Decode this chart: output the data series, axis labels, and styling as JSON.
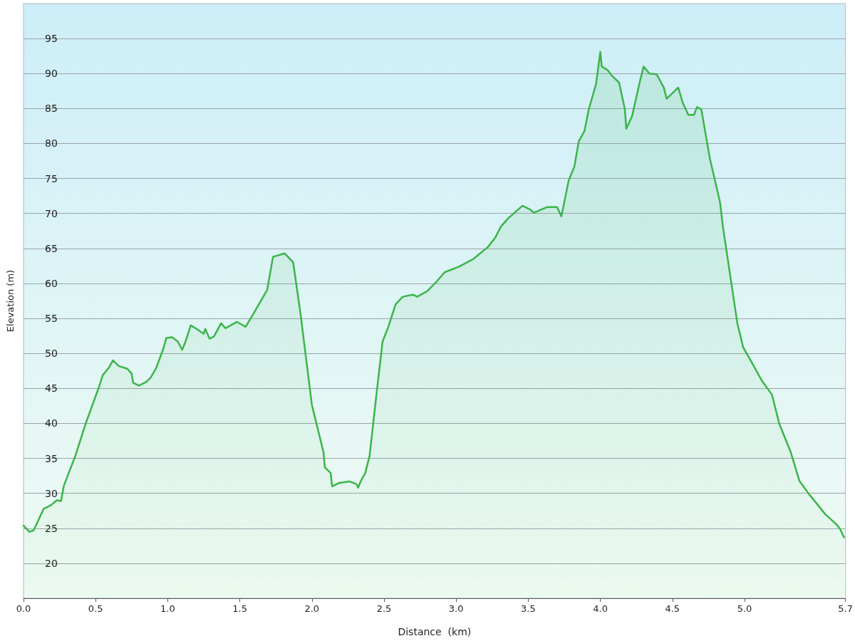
{
  "chart_data": {
    "type": "area",
    "xlabel": "Distance  (km)",
    "ylabel": "Elevation (m)",
    "x": [
      0,
      0.04,
      0.07,
      0.14,
      0.19,
      0.23,
      0.26,
      0.28,
      0.36,
      0.43,
      0.52,
      0.55,
      0.59,
      0.62,
      0.66,
      0.72,
      0.75,
      0.76,
      0.8,
      0.85,
      0.88,
      0.92,
      0.97,
      0.99,
      1.03,
      1.07,
      1.1,
      1.12,
      1.16,
      1.2,
      1.25,
      1.26,
      1.29,
      1.32,
      1.37,
      1.4,
      1.48,
      1.54,
      1.59,
      1.69,
      1.73,
      1.81,
      1.87,
      1.92,
      2.0,
      2.08,
      2.09,
      2.13,
      2.14,
      2.19,
      2.26,
      2.31,
      2.32,
      2.34,
      2.37,
      2.4,
      2.45,
      2.49,
      2.53,
      2.58,
      2.63,
      2.7,
      2.73,
      2.8,
      2.87,
      2.92,
      3.02,
      3.12,
      3.22,
      3.27,
      3.31,
      3.36,
      3.46,
      3.51,
      3.54,
      3.63,
      3.7,
      3.73,
      3.78,
      3.82,
      3.85,
      3.89,
      3.92,
      3.97,
      4.0,
      4.01,
      4.05,
      4.08,
      4.13,
      4.17,
      4.18,
      4.22,
      4.27,
      4.3,
      4.34,
      4.39,
      4.44,
      4.46,
      4.54,
      4.57,
      4.61,
      4.65,
      4.67,
      4.7,
      4.76,
      4.83,
      4.85,
      4.95,
      4.99,
      5.05,
      5.12,
      5.19,
      5.24,
      5.32,
      5.38,
      5.45,
      5.51,
      5.56,
      5.63,
      5.66,
      5.69
    ],
    "series": [
      {
        "color": "#3cb44b",
        "values": [
          25.4,
          24.5,
          24.7,
          27.8,
          28.3,
          29,
          28.9,
          31.1,
          35.4,
          39.9,
          45,
          46.9,
          47.9,
          49,
          48.2,
          47.8,
          47.1,
          45.8,
          45.4,
          45.9,
          46.5,
          47.9,
          50.7,
          52.2,
          52.3,
          51.7,
          50.5,
          51.5,
          54,
          53.5,
          52.8,
          53.5,
          52.1,
          52.4,
          54.3,
          53.6,
          54.5,
          53.8,
          55.5,
          59.1,
          63.8,
          64.3,
          63,
          55.8,
          42.6,
          35.9,
          33.7,
          32.9,
          31,
          31.5,
          31.7,
          31.3,
          30.8,
          31.8,
          32.9,
          35.4,
          44.6,
          51.7,
          53.8,
          57,
          58.1,
          58.4,
          58.1,
          58.9,
          60.4,
          61.6,
          62.4,
          63.5,
          65.2,
          66.5,
          68.1,
          69.3,
          71.1,
          70.6,
          70.1,
          70.9,
          70.9,
          69.6,
          74.7,
          76.7,
          80.3,
          81.8,
          84.9,
          88.5,
          93.1,
          91,
          90.5,
          89.7,
          88.7,
          84.9,
          82.1,
          83.9,
          88.5,
          91,
          90,
          89.9,
          88,
          86.4,
          88,
          85.9,
          84.1,
          84.1,
          85.2,
          84.9,
          77.8,
          71.6,
          68.1,
          54.3,
          50.9,
          48.7,
          46.1,
          44.1,
          40,
          35.9,
          31.8,
          29.8,
          28.3,
          27,
          25.7,
          25,
          23.7
        ]
      }
    ],
    "xlim": [
      0,
      5.7
    ],
    "xticks": [
      {
        "value": 0,
        "label": "0.0"
      },
      {
        "value": 0.5,
        "label": "0.5"
      },
      {
        "value": 1,
        "label": "1.0"
      },
      {
        "value": 1.5,
        "label": "1.5"
      },
      {
        "value": 2,
        "label": "2.0"
      },
      {
        "value": 2.5,
        "label": "2.5"
      },
      {
        "value": 3,
        "label": "3.0"
      },
      {
        "value": 3.5,
        "label": "3.5"
      },
      {
        "value": 4,
        "label": "4.0"
      },
      {
        "value": 4.5,
        "label": "4.5"
      },
      {
        "value": 5,
        "label": "5.0"
      },
      {
        "value": 5.7,
        "label": "5.7"
      }
    ],
    "ylim": [
      15,
      100
    ],
    "yticks": [
      20,
      25,
      30,
      35,
      40,
      45,
      50,
      55,
      60,
      65,
      70,
      75,
      80,
      85,
      90,
      95
    ],
    "grid": "y",
    "marker": "none",
    "line_style": "solid"
  }
}
